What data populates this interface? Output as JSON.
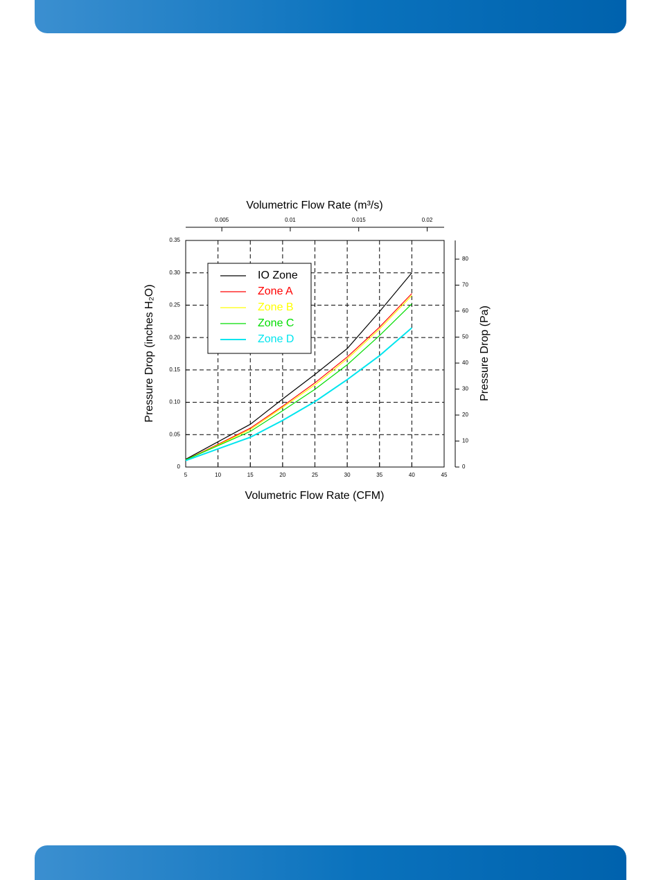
{
  "chart_data": {
    "type": "line",
    "x_label": "Volumetric Flow Rate (CFM)",
    "x2_label": "Volumetric Flow Rate (m³/s)",
    "y_label": "Pressure Drop (inches H₂O)",
    "y2_label": "Pressure Drop (Pa)",
    "x": [
      5,
      10,
      15,
      20,
      25,
      30,
      35,
      40
    ],
    "xlim": [
      5,
      45
    ],
    "xticks": [
      5,
      10,
      15,
      20,
      25,
      30,
      35,
      40,
      45
    ],
    "x2lim": [
      0.00236,
      0.02124
    ],
    "x2ticks": [
      0.005,
      0.01,
      0.015,
      0.02
    ],
    "ylim": [
      0,
      0.35
    ],
    "yticks": [
      0,
      0.05,
      {
        "value": 0.1,
        "label": "0.10"
      },
      0.15,
      {
        "value": 0.2,
        "label": "0.20"
      },
      0.25,
      {
        "value": 0.3,
        "label": "0.30"
      },
      0.35
    ],
    "y2lim": [
      0,
      87.2
    ],
    "y2ticks": [
      0,
      10,
      20,
      30,
      40,
      50,
      60,
      70,
      80
    ],
    "grid": true,
    "legend": "upper-left",
    "series": [
      {
        "name": "IO Zone",
        "color": "#000000",
        "values": [
          0.012,
          0.039,
          0.066,
          0.105,
          0.143,
          0.183,
          0.24,
          0.3
        ]
      },
      {
        "name": "Zone A",
        "color": "#ff0000",
        "values": [
          0.011,
          0.035,
          0.06,
          0.094,
          0.13,
          0.17,
          0.216,
          0.268
        ]
      },
      {
        "name": "Zone B",
        "color": "#ffff00",
        "values": [
          0.011,
          0.034,
          0.058,
          0.092,
          0.127,
          0.167,
          0.213,
          0.265
        ]
      },
      {
        "name": "Zone C",
        "color": "#00dd00",
        "values": [
          0.011,
          0.033,
          0.055,
          0.087,
          0.12,
          0.158,
          0.203,
          0.252
        ]
      },
      {
        "name": "Zone D",
        "color": "#00e5ee",
        "values": [
          0.01,
          0.028,
          0.046,
          0.072,
          0.101,
          0.135,
          0.172,
          0.215
        ]
      }
    ]
  }
}
